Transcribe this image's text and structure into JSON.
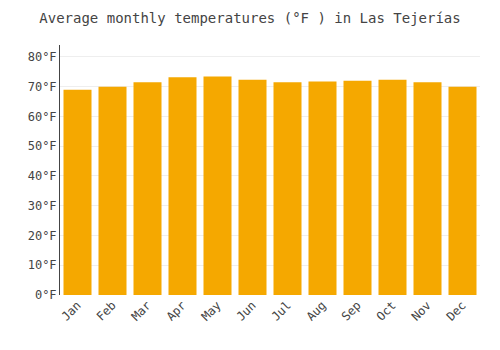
{
  "chart_data": {
    "type": "bar",
    "title": "Average monthly temperatures (°F ) in Las Tejerías",
    "categories": [
      "Jan",
      "Feb",
      "Mar",
      "Apr",
      "May",
      "Jun",
      "Jul",
      "Aug",
      "Sep",
      "Oct",
      "Nov",
      "Dec"
    ],
    "values": [
      69.0,
      70.0,
      71.5,
      73.2,
      73.4,
      72.3,
      71.5,
      71.7,
      72.0,
      72.3,
      71.5,
      70.0
    ],
    "color": "#F5A800",
    "ylim": [
      0,
      84
    ],
    "yticks": [
      {
        "value": 0,
        "label": "0°F"
      },
      {
        "value": 10,
        "label": "10°F"
      },
      {
        "value": 20,
        "label": "20°F"
      },
      {
        "value": 30,
        "label": "30°F"
      },
      {
        "value": 40,
        "label": "40°F"
      },
      {
        "value": 50,
        "label": "50°F"
      },
      {
        "value": 60,
        "label": "60°F"
      },
      {
        "value": 70,
        "label": "70°F"
      },
      {
        "value": 80,
        "label": "80°F"
      }
    ],
    "grid": true
  }
}
